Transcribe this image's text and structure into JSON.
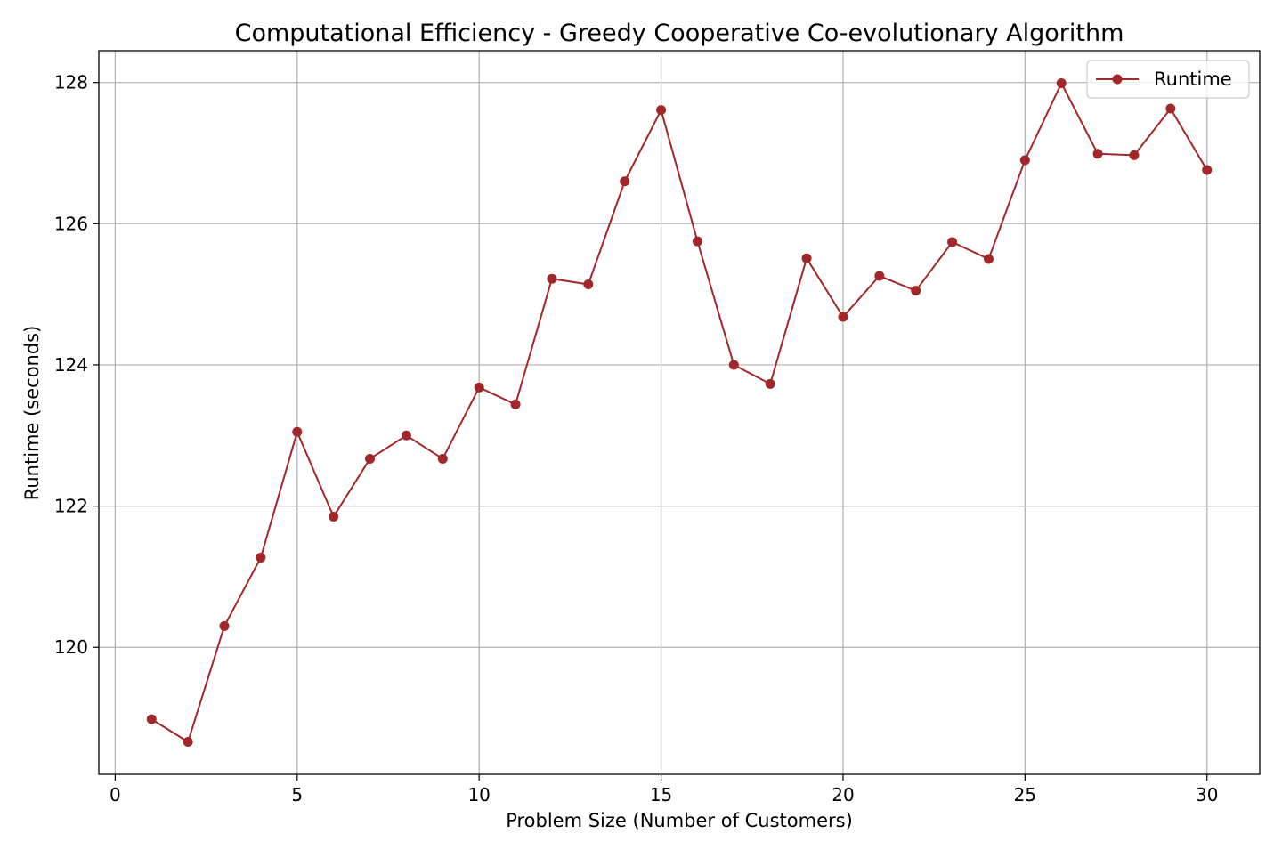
{
  "chart_data": {
    "type": "line",
    "title": "Computational Efficiency - Greedy Cooperative Co-evolutionary Algorithm",
    "xlabel": "Problem Size (Number of Customers)",
    "ylabel": "Runtime (seconds)",
    "xlim": [
      -0.45,
      31.45
    ],
    "ylim": [
      118.2,
      128.45
    ],
    "x_ticks": [
      0,
      5,
      10,
      15,
      20,
      25,
      30
    ],
    "y_ticks": [
      120,
      122,
      124,
      126,
      128
    ],
    "grid": true,
    "legend_position": "top-right",
    "series": [
      {
        "name": "Runtime",
        "color": "#a2272a",
        "marker": "circle",
        "x": [
          1,
          2,
          3,
          4,
          5,
          6,
          7,
          8,
          9,
          10,
          11,
          12,
          13,
          14,
          15,
          16,
          17,
          18,
          19,
          20,
          21,
          22,
          23,
          24,
          25,
          26,
          27,
          28,
          29,
          30
        ],
        "values": [
          118.98,
          118.66,
          120.3,
          121.27,
          123.05,
          121.85,
          122.67,
          123.0,
          122.67,
          123.68,
          123.44,
          125.22,
          125.14,
          126.6,
          127.61,
          125.75,
          124.0,
          123.73,
          125.51,
          124.68,
          125.26,
          125.05,
          125.74,
          125.5,
          126.9,
          127.99,
          126.99,
          126.97,
          127.63,
          126.76
        ]
      }
    ]
  }
}
